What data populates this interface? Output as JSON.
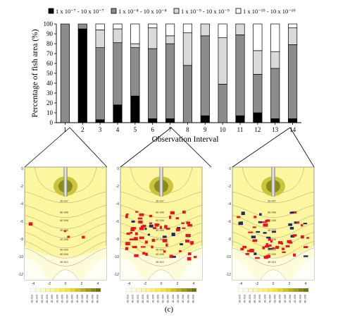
{
  "chart_data": {
    "type": "bar",
    "stacked": true,
    "xlabel": "Observation Interval",
    "ylabel": "Percentage of fish area (%)",
    "ylim": [
      0,
      100
    ],
    "yticks": [
      0,
      10,
      20,
      30,
      40,
      50,
      60,
      70,
      80,
      90,
      100
    ],
    "categories": [
      "1",
      "2",
      "3",
      "4",
      "5",
      "6",
      "7",
      "8",
      "9",
      "10",
      "11",
      "12",
      "13",
      "14"
    ],
    "legend_position": "top",
    "series": [
      {
        "name": "1 x 10⁻⁷ - 10 x 10⁻⁷",
        "color": "#000000",
        "values": [
          0,
          95,
          3,
          18,
          27,
          4,
          4,
          0,
          7,
          0,
          7,
          10,
          4,
          4
        ]
      },
      {
        "name": "1 x 10⁻⁸ - 10 x 10⁻⁸",
        "color": "#8c8c8c",
        "values": [
          100,
          5,
          73,
          63,
          49,
          71,
          76,
          58,
          81,
          39,
          82,
          39,
          51,
          75
        ]
      },
      {
        "name": "1 x 10⁻⁹ - 10 x 10⁻⁹",
        "color": "#d9d9d9",
        "values": [
          0,
          0,
          18,
          14,
          4,
          21,
          8,
          33,
          12,
          47,
          11,
          24,
          17,
          17
        ]
      },
      {
        "name": "1 x 10⁻¹⁰ - 10 x 10⁻¹⁰",
        "color": "#ffffff",
        "values": [
          0,
          0,
          6,
          5,
          20,
          4,
          12,
          9,
          0,
          14,
          0,
          27,
          28,
          4
        ]
      }
    ]
  },
  "panels": {
    "y_ticks": [
      "0",
      "-2",
      "-4",
      "-6",
      "-8",
      "-10",
      "-12"
    ],
    "x_ticks": [
      "-4",
      "-2",
      "0",
      "2",
      "4"
    ],
    "contour_labels": [
      "2E-007",
      "8E-008",
      "6E-008",
      "4E-008",
      "2E-008",
      "9E-009",
      "6E-009",
      "4E-010"
    ],
    "colorbar_labels": [
      "2E-010",
      "4E-010",
      "6E-010",
      "8E-010",
      "1E-009",
      "2E-009",
      "4E-009",
      "6E-009",
      "8E-009",
      "1E-008",
      "2E-008",
      "4E-008",
      "6E-008",
      "8E-008"
    ],
    "colors": {
      "field": "#fdf6a0",
      "field_light": "#fefbd8",
      "field_white": "#fffef4",
      "core": "#8a8a1e",
      "fish": "#e8141e",
      "fish_dark": "#1c2c6a"
    }
  },
  "caption": "(c)"
}
